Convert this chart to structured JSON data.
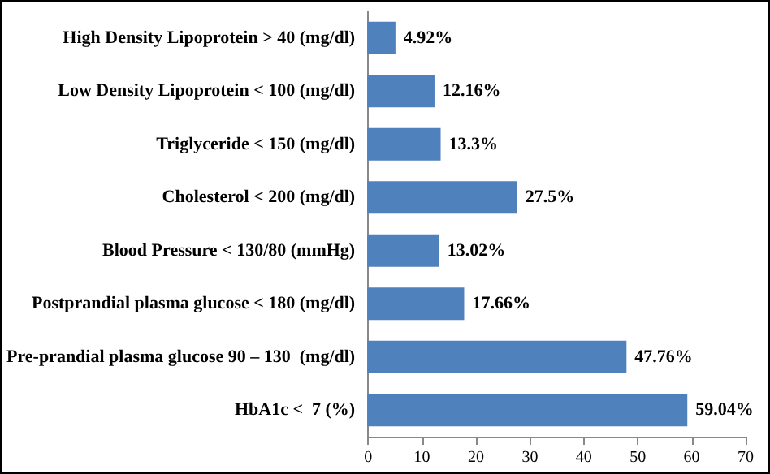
{
  "chart_data": {
    "type": "bar",
    "orientation": "horizontal",
    "categories": [
      "High Density Lipoprotein > 40 (mg/dl)",
      "Low Density Lipoprotein < 100 (mg/dl)",
      "Triglyceride < 150 (mg/dl)",
      "Cholesterol < 200 (mg/dl)",
      "Blood Pressure < 130/80 (mmHg)",
      "Postprandial plasma glucose < 180 (mg/dl)",
      "Pre-prandial plasma glucose 90 – 130  (mg/dl)",
      "HbA1c <  7 (%)"
    ],
    "values": [
      4.92,
      12.16,
      13.3,
      27.5,
      13.02,
      17.66,
      47.76,
      59.04
    ],
    "value_labels": [
      "4.92%",
      "12.16%",
      "13.3%",
      "27.5%",
      "13.02%",
      "17.66%",
      "47.76%",
      "59.04%"
    ],
    "color": "#4f81bd",
    "xlim": [
      0,
      70
    ],
    "xticks": [
      0,
      10,
      20,
      30,
      40,
      50,
      60,
      70
    ],
    "grid": false
  }
}
